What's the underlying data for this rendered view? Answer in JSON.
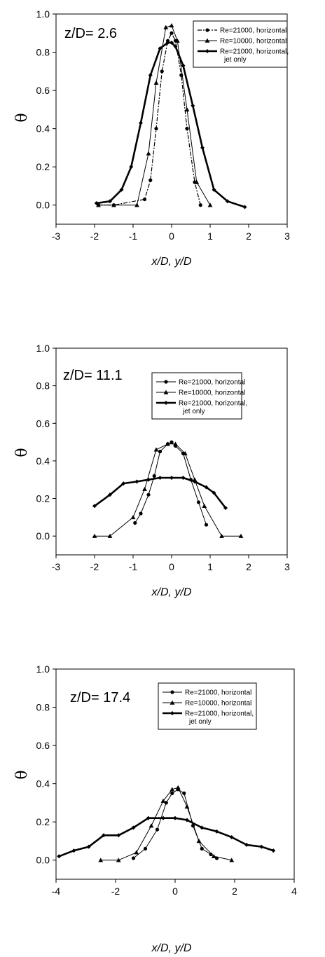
{
  "chart_data": [
    {
      "type": "line",
      "annotation": "z/D= 2.6",
      "xlabel": "x/D, y/D",
      "ylabel": "θ",
      "xlim": [
        -3,
        3
      ],
      "ylim": [
        -0.1,
        1.0
      ],
      "xticks": [
        "-3",
        "-2",
        "-1",
        "0",
        "1",
        "2",
        "3"
      ],
      "yticks": [
        "0.0",
        "0.2",
        "0.4",
        "0.6",
        "0.8",
        "1.0"
      ],
      "legend_position": "top-right",
      "series": [
        {
          "name": "Re=21000, horizontal",
          "line": "dash-dot",
          "marker": "circle",
          "x": [
            -1.9,
            -1.5,
            -0.7,
            -0.55,
            -0.4,
            -0.25,
            -0.1,
            0,
            0.1,
            0.25,
            0.4,
            0.6,
            0.75
          ],
          "y": [
            0.0,
            0.0,
            0.03,
            0.13,
            0.4,
            0.7,
            0.86,
            0.9,
            0.86,
            0.68,
            0.4,
            0.12,
            0.0
          ]
        },
        {
          "name": "Re=10000, horizontal",
          "line": "thin",
          "marker": "triangle",
          "x": [
            -1.9,
            -1.5,
            -0.9,
            -0.6,
            -0.4,
            -0.15,
            0,
            0.15,
            0.4,
            0.65,
            1.0
          ],
          "y": [
            0.0,
            0.0,
            0.0,
            0.27,
            0.64,
            0.93,
            0.94,
            0.86,
            0.5,
            0.12,
            0.0
          ]
        },
        {
          "name": "Re=21000, horizontal, jet only",
          "line": "thick",
          "marker": "diamond",
          "x": [
            -1.95,
            -1.6,
            -1.3,
            -1.05,
            -0.8,
            -0.55,
            -0.3,
            -0.1,
            0,
            0.1,
            0.3,
            0.55,
            0.8,
            1.1,
            1.45,
            1.9
          ],
          "y": [
            0.01,
            0.02,
            0.08,
            0.2,
            0.43,
            0.68,
            0.82,
            0.85,
            0.85,
            0.83,
            0.73,
            0.52,
            0.3,
            0.08,
            0.02,
            -0.01
          ]
        }
      ]
    },
    {
      "type": "line",
      "annotation": "z/D= 11.1",
      "xlabel": "x/D, y/D",
      "ylabel": "θ",
      "xlim": [
        -3,
        3
      ],
      "ylim": [
        -0.1,
        1.0
      ],
      "xticks": [
        "-3",
        "-2",
        "-1",
        "0",
        "1",
        "2",
        "3"
      ],
      "yticks": [
        "0.0",
        "0.2",
        "0.4",
        "0.6",
        "0.8",
        "1.0"
      ],
      "legend_position": "top-right",
      "series": [
        {
          "name": "Re=21000, horizontal",
          "line": "thin",
          "marker": "circle",
          "x": [
            -0.95,
            -0.8,
            -0.6,
            -0.45,
            -0.3,
            -0.1,
            0,
            0.1,
            0.3,
            0.5,
            0.7,
            0.9
          ],
          "y": [
            0.07,
            0.12,
            0.22,
            0.32,
            0.45,
            0.49,
            0.5,
            0.48,
            0.44,
            0.3,
            0.18,
            0.06
          ]
        },
        {
          "name": "Re=10000, horizontal",
          "line": "thin",
          "marker": "triangle",
          "x": [
            -2.0,
            -1.6,
            -1.0,
            -0.7,
            -0.4,
            -0.1,
            0.1,
            0.35,
            0.6,
            0.85,
            1.3,
            1.8
          ],
          "y": [
            0.0,
            0.0,
            0.1,
            0.25,
            0.46,
            0.49,
            0.49,
            0.44,
            0.3,
            0.16,
            0.0,
            0.0
          ]
        },
        {
          "name": "Re=21000, horizontal, jet only",
          "line": "thick",
          "marker": "diamond",
          "x": [
            -2.0,
            -1.6,
            -1.25,
            -0.9,
            -0.6,
            -0.3,
            0,
            0.3,
            0.6,
            0.9,
            1.1,
            1.4
          ],
          "y": [
            0.16,
            0.22,
            0.28,
            0.29,
            0.3,
            0.31,
            0.31,
            0.31,
            0.29,
            0.26,
            0.23,
            0.15
          ]
        }
      ]
    },
    {
      "type": "line",
      "annotation": "z/D= 17.4",
      "xlabel": "x/D, y/D",
      "ylabel": "θ",
      "xlim": [
        -4,
        4
      ],
      "ylim": [
        -0.1,
        1.0
      ],
      "xticks": [
        "-4",
        "-2",
        "0",
        "2",
        "4"
      ],
      "yticks": [
        "0.0",
        "0.2",
        "0.4",
        "0.6",
        "0.8",
        "1.0"
      ],
      "legend_position": "top-right",
      "series": [
        {
          "name": "Re=21000, horizontal",
          "line": "thin",
          "marker": "circle",
          "x": [
            -1.4,
            -1.0,
            -0.6,
            -0.3,
            -0.1,
            0.1,
            0.3,
            0.6,
            0.9,
            1.2,
            1.4
          ],
          "y": [
            0.01,
            0.06,
            0.16,
            0.3,
            0.35,
            0.37,
            0.35,
            0.18,
            0.06,
            0.03,
            0.01
          ]
        },
        {
          "name": "Re=10000, horizontal",
          "line": "thin",
          "marker": "triangle",
          "x": [
            -2.5,
            -1.9,
            -1.3,
            -0.8,
            -0.4,
            -0.1,
            0.1,
            0.4,
            0.8,
            1.3,
            1.9
          ],
          "y": [
            0.0,
            0.0,
            0.04,
            0.18,
            0.31,
            0.37,
            0.38,
            0.28,
            0.1,
            0.02,
            0.0
          ]
        },
        {
          "name": "Re=21000, horizontal, jet only",
          "line": "thick",
          "marker": "diamond",
          "x": [
            -3.9,
            -3.4,
            -2.9,
            -2.4,
            -1.9,
            -1.4,
            -0.9,
            -0.4,
            0,
            0.4,
            0.9,
            1.4,
            1.9,
            2.4,
            2.9,
            3.3
          ],
          "y": [
            0.02,
            0.05,
            0.07,
            0.13,
            0.13,
            0.17,
            0.22,
            0.22,
            0.22,
            0.21,
            0.17,
            0.15,
            0.12,
            0.08,
            0.07,
            0.05
          ]
        }
      ]
    }
  ]
}
